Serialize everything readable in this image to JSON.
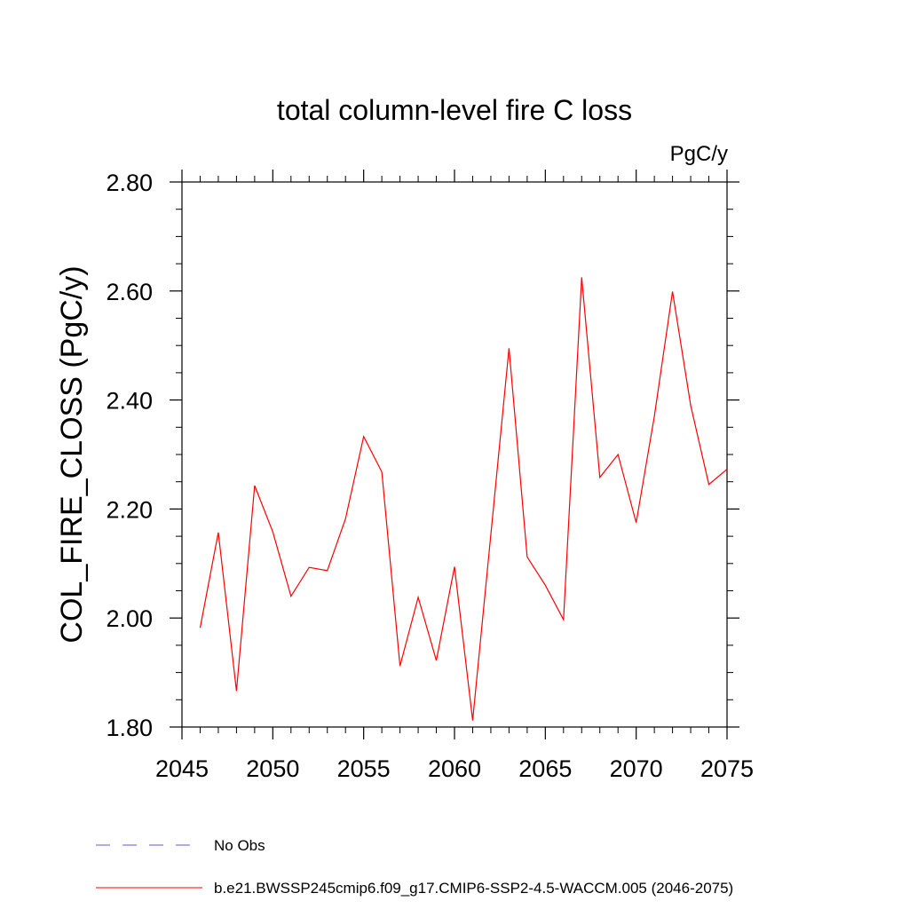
{
  "chart_data": {
    "type": "line",
    "title": "total column-level fire C loss",
    "units": "PgC/y",
    "ylabel": "COL_FIRE_CLOSS  (PgC/y)",
    "xlabel": "",
    "xlim": [
      2045,
      2075
    ],
    "ylim": [
      1.8,
      2.8
    ],
    "xticks": [
      "2045",
      "2050",
      "2055",
      "2060",
      "2065",
      "2070",
      "2075"
    ],
    "yticks": [
      "1.80",
      "2.00",
      "2.20",
      "2.40",
      "2.60",
      "2.80"
    ],
    "grid": false,
    "legend_position": "bottom",
    "series": [
      {
        "name": "b.e21.BWSSP245cmip6.f09_g17.CMIP6-SSP2-4.5-WACCM.005 (2046-2075)",
        "color": "#ff0000",
        "style": "solid",
        "x": [
          2046,
          2047,
          2048,
          2049,
          2050,
          2051,
          2052,
          2053,
          2054,
          2055,
          2056,
          2057,
          2058,
          2059,
          2060,
          2061,
          2062,
          2063,
          2064,
          2065,
          2066,
          2067,
          2068,
          2069,
          2070,
          2071,
          2072,
          2073,
          2074,
          2075
        ],
        "values": [
          1.982,
          2.157,
          1.866,
          2.243,
          2.158,
          2.04,
          2.093,
          2.087,
          2.182,
          2.333,
          2.268,
          1.912,
          2.038,
          1.922,
          2.094,
          1.812,
          2.153,
          2.495,
          2.112,
          2.06,
          1.997,
          2.625,
          2.258,
          2.3,
          2.175,
          2.37,
          2.599,
          2.39,
          2.245,
          2.273
        ]
      }
    ],
    "legend": [
      {
        "label": "No Obs",
        "color": "#6a5acd",
        "style": "dashed"
      },
      {
        "label": "b.e21.BWSSP245cmip6.f09_g17.CMIP6-SSP2-4.5-WACCM.005 (2046-2075)",
        "color": "#ff0000",
        "style": "solid"
      }
    ]
  }
}
